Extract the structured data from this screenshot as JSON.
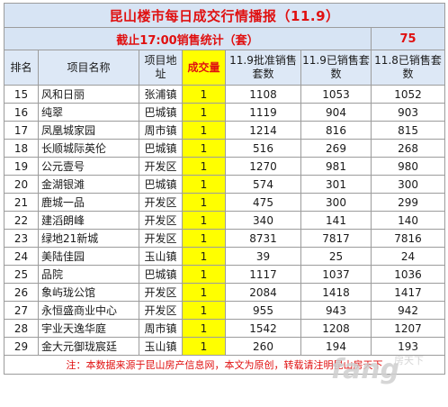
{
  "title": "昆山楼市每日成交行情播报（11.9）",
  "subtitle": {
    "label": "截止17:00销售统计（套）",
    "total": "75"
  },
  "columns": {
    "rank": "排名",
    "project": "项目名称",
    "location": "项目地址",
    "volume": "成交量",
    "approved": "11.9批准销售套数",
    "sold_today": "11.9已销售套数",
    "sold_prev": "11.8已销售套数"
  },
  "rows": [
    {
      "rank": "15",
      "name": "风和日丽",
      "location": "张浦镇",
      "volume": "1",
      "approved": "1108",
      "sold": "1053",
      "prev": "1052"
    },
    {
      "rank": "16",
      "name": "纯翠",
      "location": "巴城镇",
      "volume": "1",
      "approved": "1119",
      "sold": "904",
      "prev": "903"
    },
    {
      "rank": "17",
      "name": "凤凰城家园",
      "location": "周市镇",
      "volume": "1",
      "approved": "1214",
      "sold": "816",
      "prev": "815"
    },
    {
      "rank": "18",
      "name": "长顺城际英伦",
      "location": "巴城镇",
      "volume": "1",
      "approved": "516",
      "sold": "269",
      "prev": "268"
    },
    {
      "rank": "19",
      "name": "公元壹号",
      "location": "开发区",
      "volume": "1",
      "approved": "1270",
      "sold": "981",
      "prev": "980"
    },
    {
      "rank": "20",
      "name": "金湖银滩",
      "location": "巴城镇",
      "volume": "1",
      "approved": "574",
      "sold": "301",
      "prev": "300"
    },
    {
      "rank": "21",
      "name": "鹿城一品",
      "location": "开发区",
      "volume": "1",
      "approved": "475",
      "sold": "300",
      "prev": "299"
    },
    {
      "rank": "22",
      "name": "建滔朗峰",
      "location": "开发区",
      "volume": "1",
      "approved": "340",
      "sold": "141",
      "prev": "140"
    },
    {
      "rank": "23",
      "name": "绿地21新城",
      "location": "开发区",
      "volume": "1",
      "approved": "8731",
      "sold": "7817",
      "prev": "7816"
    },
    {
      "rank": "24",
      "name": "美陆佳园",
      "location": "玉山镇",
      "volume": "1",
      "approved": "39",
      "sold": "25",
      "prev": "24"
    },
    {
      "rank": "25",
      "name": "品院",
      "location": "巴城镇",
      "volume": "1",
      "approved": "1117",
      "sold": "1037",
      "prev": "1036"
    },
    {
      "rank": "26",
      "name": "象屿珑公馆",
      "location": "开发区",
      "volume": "1",
      "approved": "2084",
      "sold": "1418",
      "prev": "1417"
    },
    {
      "rank": "27",
      "name": "永恒盛商业中心",
      "location": "开发区",
      "volume": "1",
      "approved": "955",
      "sold": "943",
      "prev": "942"
    },
    {
      "rank": "28",
      "name": "宇业天逸华庭",
      "location": "周市镇",
      "volume": "1",
      "approved": "1542",
      "sold": "1208",
      "prev": "1207"
    },
    {
      "rank": "29",
      "name": "金大元御珑宸廷",
      "location": "玉山镇",
      "volume": "1",
      "approved": "260",
      "sold": "194",
      "prev": "193"
    }
  ],
  "note": "注：本数据来源于昆山房产信息网，本文为原创，转载请注明昆山房天下",
  "watermark": "房天下 fang.com",
  "colors": {
    "accent_red": "#e01010",
    "highlight_yellow": "#ffff00",
    "header_blue": "#d7e4f4"
  }
}
